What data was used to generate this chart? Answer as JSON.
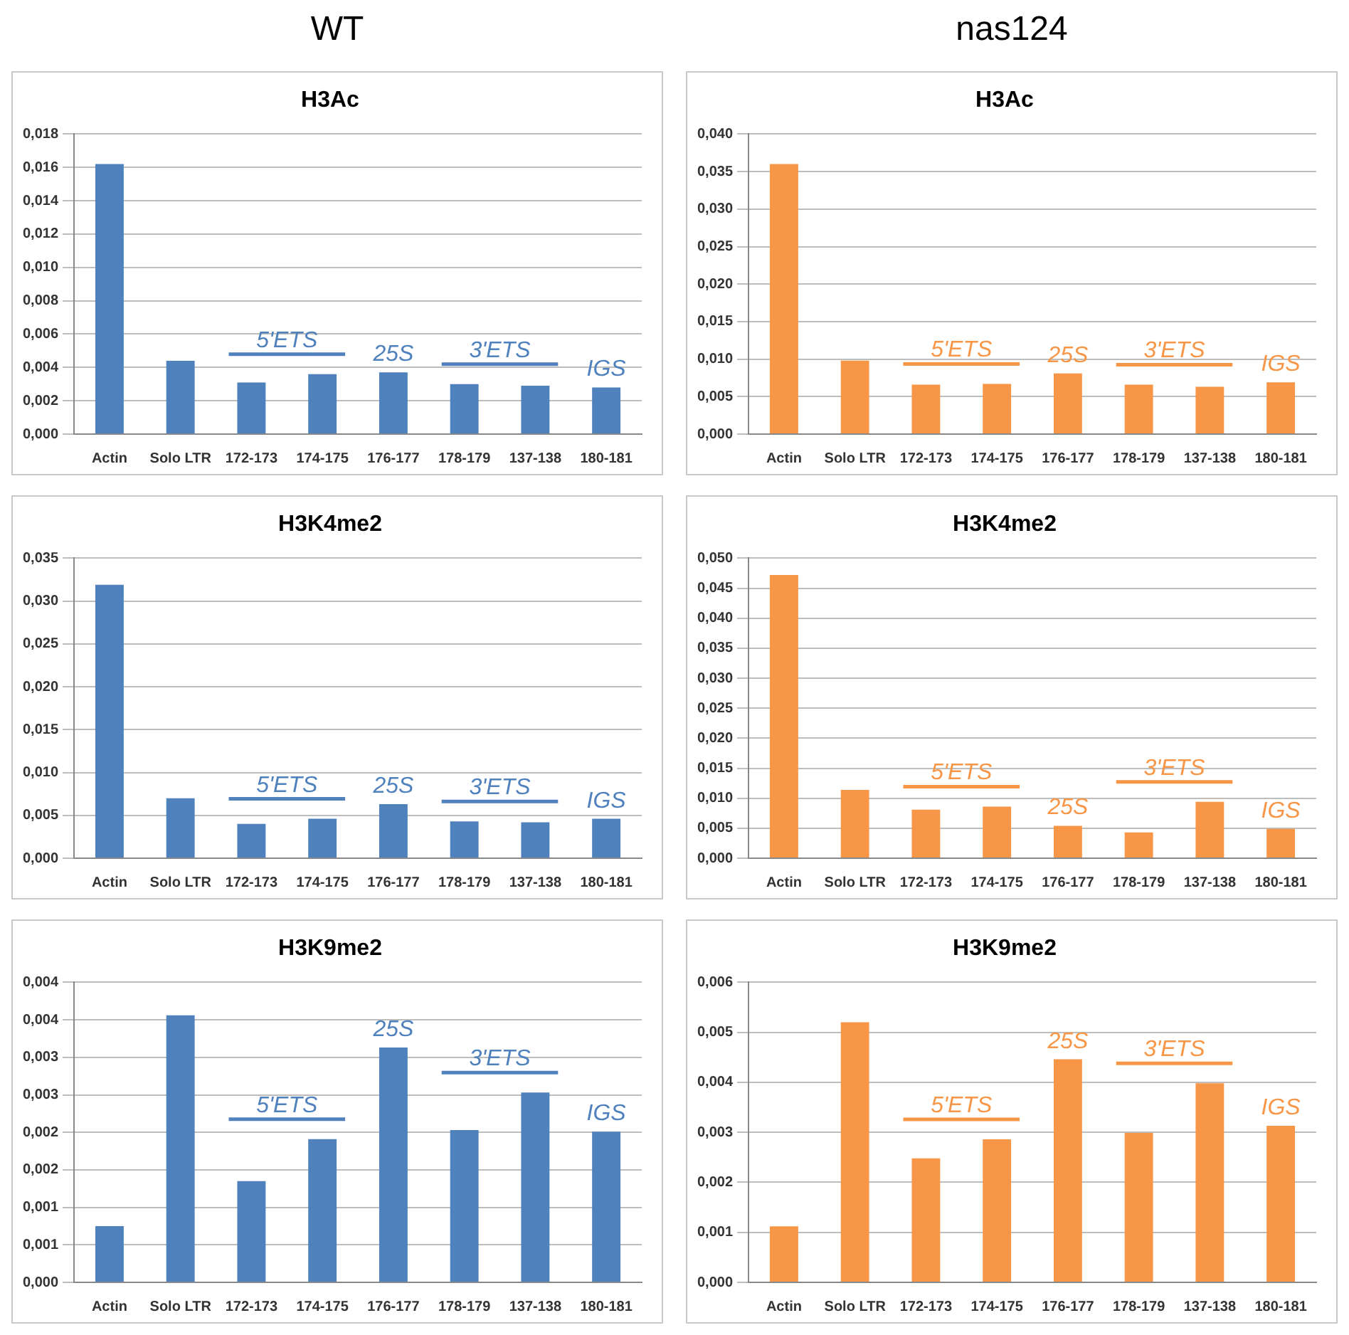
{
  "chart_data": [
    {
      "type": "bar",
      "subtitle": "WT",
      "title": "H3Ac",
      "categories": [
        "Actin",
        "Solo LTR",
        "172-173",
        "174-175",
        "176-177",
        "178-179",
        "137-138",
        "180-181"
      ],
      "color": "#4f81bd",
      "values": [
        0.0162,
        0.0044,
        0.0031,
        0.0036,
        0.0037,
        0.003,
        0.0029,
        0.0028
      ],
      "ylim": [
        0,
        0.018
      ],
      "yticks": [
        {
          "value": 0,
          "label": "0,000"
        },
        {
          "value": 0.002,
          "label": "0,002"
        },
        {
          "value": 0.004,
          "label": "0,004"
        },
        {
          "value": 0.006,
          "label": "0,006"
        },
        {
          "value": 0.008,
          "label": "0,008"
        },
        {
          "value": 0.01,
          "label": "0,010"
        },
        {
          "value": 0.012,
          "label": "0,012"
        },
        {
          "value": 0.014,
          "label": "0,014"
        },
        {
          "value": 0.016,
          "label": "0,016"
        },
        {
          "value": 0.018,
          "label": "0,018"
        }
      ],
      "grid": "y",
      "legend": false,
      "annotations": [
        {
          "text": "5'ETS",
          "x": "174-175",
          "y": 0.0036
        },
        {
          "text": "25S",
          "x": "176-177",
          "y": 0.0037
        },
        {
          "text": "3'ETS",
          "x": "137-138",
          "y": 0.0029
        },
        {
          "text": "IGS",
          "x": "180-181",
          "y": 0.0028
        }
      ]
    },
    {
      "type": "bar",
      "subtitle": "nas124",
      "title": "H3Ac",
      "categories": [
        "Actin",
        "Solo LTR",
        "172-173",
        "174-175",
        "176-177",
        "178-179",
        "137-138",
        "180-181"
      ],
      "color": "#f79646",
      "values": [
        0.036,
        0.0098,
        0.0066,
        0.0067,
        0.0081,
        0.0066,
        0.0063,
        0.0069
      ],
      "ylim": [
        0,
        0.04
      ],
      "yticks": [
        {
          "value": 0,
          "label": "0,000"
        },
        {
          "value": 0.005,
          "label": "0,005"
        },
        {
          "value": 0.01,
          "label": "0,010"
        },
        {
          "value": 0.015,
          "label": "0,015"
        },
        {
          "value": 0.02,
          "label": "0,020"
        },
        {
          "value": 0.025,
          "label": "0,025"
        },
        {
          "value": 0.03,
          "label": "0,030"
        },
        {
          "value": 0.035,
          "label": "0,035"
        },
        {
          "value": 0.04,
          "label": "0,040"
        }
      ],
      "grid": "y",
      "legend": false,
      "annotations": [
        {
          "text": "5'ETS",
          "x": "174-175",
          "y": 0.0067
        },
        {
          "text": "25S",
          "x": "176-177",
          "y": 0.0081
        },
        {
          "text": "3'ETS",
          "x": "137-138",
          "y": 0.0063
        },
        {
          "text": "IGS",
          "x": "180-181",
          "y": 0.0069
        }
      ]
    },
    {
      "type": "bar",
      "title": "H3K4me2",
      "categories": [
        "Actin",
        "Solo LTR",
        "172-173",
        "174-175",
        "176-177",
        "178-179",
        "137-138",
        "180-181"
      ],
      "color": "#4f81bd",
      "values": [
        0.0319,
        0.007,
        0.004,
        0.0046,
        0.0063,
        0.0043,
        0.0042,
        0.0046
      ],
      "ylim": [
        0,
        0.035
      ],
      "yticks": [
        {
          "value": 0,
          "label": "0,000"
        },
        {
          "value": 0.005,
          "label": "0,005"
        },
        {
          "value": 0.01,
          "label": "0,010"
        },
        {
          "value": 0.015,
          "label": "0,015"
        },
        {
          "value": 0.02,
          "label": "0,020"
        },
        {
          "value": 0.025,
          "label": "0,025"
        },
        {
          "value": 0.03,
          "label": "0,030"
        },
        {
          "value": 0.035,
          "label": "0,035"
        }
      ],
      "grid": "y",
      "legend": false,
      "annotations": [
        {
          "text": "5'ETS",
          "x": "174-175",
          "y": 0.0046
        },
        {
          "text": "25S",
          "x": "176-177",
          "y": 0.0063
        },
        {
          "text": "3'ETS",
          "x": "137-138",
          "y": 0.0042
        },
        {
          "text": "IGS",
          "x": "180-181",
          "y": 0.0046
        }
      ]
    },
    {
      "type": "bar",
      "title": "H3K4me2",
      "categories": [
        "Actin",
        "Solo LTR",
        "172-173",
        "174-175",
        "176-177",
        "178-179",
        "137-138",
        "180-181"
      ],
      "color": "#f79646",
      "values": [
        0.0472,
        0.0114,
        0.0081,
        0.0086,
        0.0054,
        0.0043,
        0.0094,
        0.0049
      ],
      "ylim": [
        0,
        0.05
      ],
      "yticks": [
        {
          "value": 0,
          "label": "0,000"
        },
        {
          "value": 0.005,
          "label": "0,005"
        },
        {
          "value": 0.01,
          "label": "0,010"
        },
        {
          "value": 0.015,
          "label": "0,015"
        },
        {
          "value": 0.02,
          "label": "0,020"
        },
        {
          "value": 0.025,
          "label": "0,025"
        },
        {
          "value": 0.03,
          "label": "0,030"
        },
        {
          "value": 0.035,
          "label": "0,035"
        },
        {
          "value": 0.04,
          "label": "0,040"
        },
        {
          "value": 0.045,
          "label": "0,045"
        },
        {
          "value": 0.05,
          "label": "0,050"
        }
      ],
      "grid": "y",
      "legend": false,
      "annotations": [
        {
          "text": "5'ETS",
          "x": "174-175",
          "y": 0.0086
        },
        {
          "text": "25S",
          "x": "176-177",
          "y": 0.0054
        },
        {
          "text": "3'ETS",
          "x": "137-138",
          "y": 0.0094
        },
        {
          "text": "IGS",
          "x": "180-181",
          "y": 0.0049
        }
      ]
    },
    {
      "type": "bar",
      "title": "H3K9me2",
      "categories": [
        "Actin",
        "Solo LTR",
        "172-173",
        "174-175",
        "176-177",
        "178-179",
        "137-138",
        "180-181"
      ],
      "color": "#4f81bd",
      "values": [
        0.00075,
        0.00356,
        0.00135,
        0.00191,
        0.00313,
        0.00203,
        0.00253,
        0.00201
      ],
      "ylim": [
        0,
        0.004
      ],
      "yticks": [
        {
          "value": 0,
          "label": "0,000"
        },
        {
          "value": 0.0005,
          "label": "0,001"
        },
        {
          "value": 0.001,
          "label": "0,001"
        },
        {
          "value": 0.0015,
          "label": "0,002"
        },
        {
          "value": 0.002,
          "label": "0,002"
        },
        {
          "value": 0.0025,
          "label": "0,003"
        },
        {
          "value": 0.003,
          "label": "0,003"
        },
        {
          "value": 0.0035,
          "label": "0,004"
        },
        {
          "value": 0.004,
          "label": "0,004"
        }
      ],
      "grid": "y",
      "legend": false,
      "annotations": [
        {
          "text": "5'ETS",
          "x": "174-175",
          "y": 0.00191
        },
        {
          "text": "25S",
          "x": "176-177",
          "y": 0.00313
        },
        {
          "text": "3'ETS",
          "x": "137-138",
          "y": 0.00253
        },
        {
          "text": "IGS",
          "x": "180-181",
          "y": 0.00201
        }
      ]
    },
    {
      "type": "bar",
      "title": "H3K9me2",
      "categories": [
        "Actin",
        "Solo LTR",
        "172-173",
        "174-175",
        "176-177",
        "178-179",
        "137-138",
        "180-181"
      ],
      "color": "#f79646",
      "values": [
        0.00112,
        0.0052,
        0.00248,
        0.00286,
        0.00446,
        0.00299,
        0.00398,
        0.00313
      ],
      "ylim": [
        0,
        0.006
      ],
      "yticks": [
        {
          "value": 0,
          "label": "0,000"
        },
        {
          "value": 0.001,
          "label": "0,001"
        },
        {
          "value": 0.002,
          "label": "0,002"
        },
        {
          "value": 0.003,
          "label": "0,003"
        },
        {
          "value": 0.004,
          "label": "0,004"
        },
        {
          "value": 0.005,
          "label": "0,005"
        },
        {
          "value": 0.006,
          "label": "0,006"
        }
      ],
      "grid": "y",
      "legend": false,
      "annotations": [
        {
          "text": "5'ETS",
          "x": "174-175",
          "y": 0.00286
        },
        {
          "text": "25S",
          "x": "176-177",
          "y": 0.00446
        },
        {
          "text": "3'ETS",
          "x": "137-138",
          "y": 0.00398
        },
        {
          "text": "IGS",
          "x": "180-181",
          "y": 0.00313
        }
      ]
    }
  ]
}
